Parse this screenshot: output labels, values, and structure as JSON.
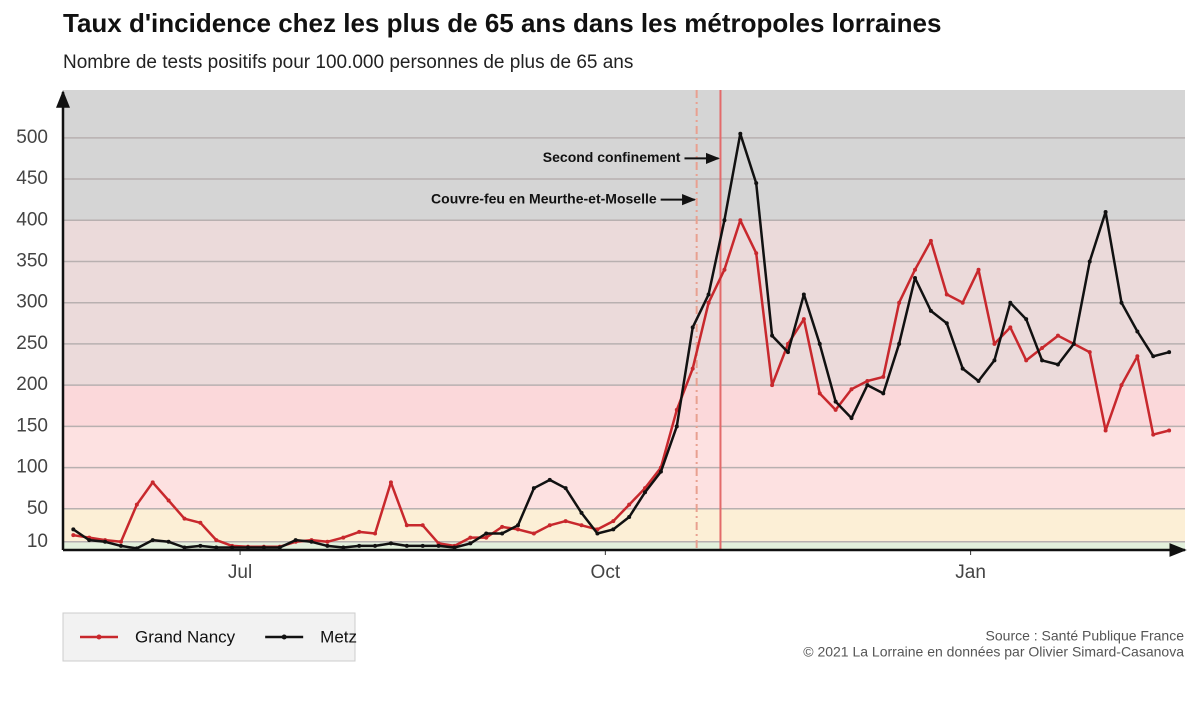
{
  "chart_data": {
    "type": "line",
    "title": "Taux d'incidence chez les plus de 65 ans dans les métropoles lorraines",
    "subtitle": "Nombre de tests positifs pour 100.000 personnes de plus de 65 ans",
    "x": [
      -42,
      -38,
      -34,
      -30,
      -26,
      -22,
      -18,
      -14,
      -10,
      -6,
      -2,
      2,
      6,
      10,
      14,
      18,
      22,
      26,
      30,
      34,
      38,
      42,
      46,
      50,
      54,
      58,
      62,
      66,
      70,
      74,
      78,
      82,
      86,
      90,
      94,
      98,
      102,
      106,
      110,
      114,
      118,
      122,
      126,
      130,
      134,
      138,
      142,
      146,
      150,
      154,
      158,
      162,
      166,
      170,
      174,
      178,
      182,
      186,
      190,
      194,
      198,
      202,
      206,
      210,
      214,
      218,
      222,
      226,
      230,
      234
    ],
    "series": [
      {
        "name": "Grand Nancy",
        "color": "#c8282d",
        "values": [
          18,
          15,
          12,
          10,
          55,
          82,
          60,
          38,
          33,
          12,
          5,
          4,
          4,
          4,
          10,
          12,
          10,
          15,
          22,
          20,
          82,
          30,
          30,
          8,
          5,
          15,
          15,
          28,
          25,
          20,
          30,
          35,
          30,
          25,
          35,
          55,
          75,
          100,
          170,
          220,
          300,
          340,
          400,
          360,
          200,
          250,
          280,
          190,
          170,
          195,
          205,
          210,
          300,
          340,
          375,
          310,
          300,
          340,
          250,
          270,
          230,
          245,
          260,
          250,
          240,
          145,
          200,
          235,
          140,
          145
        ]
      },
      {
        "name": "Metz",
        "color": "#111111",
        "values": [
          25,
          12,
          10,
          5,
          2,
          12,
          10,
          3,
          5,
          3,
          3,
          3,
          3,
          3,
          12,
          10,
          5,
          3,
          5,
          5,
          8,
          5,
          5,
          5,
          3,
          8,
          20,
          20,
          30,
          75,
          85,
          75,
          45,
          20,
          25,
          40,
          70,
          95,
          150,
          270,
          310,
          400,
          505,
          445,
          260,
          240,
          310,
          250,
          180,
          160,
          200,
          190,
          250,
          330,
          290,
          275,
          220,
          205,
          230,
          300,
          280,
          230,
          225,
          250,
          350,
          410,
          300,
          265,
          235,
          240
        ]
      }
    ],
    "xlim": [
      -44.6,
      238
    ],
    "xticks": [
      {
        "value": 0,
        "label": "Jul"
      },
      {
        "value": 92,
        "label": "Oct"
      },
      {
        "value": 184,
        "label": "Jan"
      }
    ],
    "ylim": [
      0,
      558
    ],
    "yticks": [
      10,
      50,
      100,
      150,
      200,
      250,
      300,
      350,
      400,
      450,
      500
    ],
    "grid": true,
    "bands": [
      {
        "from": 0,
        "to": 10,
        "color": "#e3f0dc"
      },
      {
        "from": 10,
        "to": 50,
        "color": "#fcefd6"
      },
      {
        "from": 50,
        "to": 150,
        "color": "#fde1e1"
      },
      {
        "from": 150,
        "to": 200,
        "color": "#fbd8da"
      },
      {
        "from": 200,
        "to": 400,
        "color": "#ebdada"
      },
      {
        "from": 400,
        "to": 558,
        "color": "#d5d5d5"
      }
    ],
    "annotations": [
      {
        "text": "Couvre-feu en Meurthe-et-Moselle",
        "x": 115,
        "y": 425,
        "style": "dashdot",
        "color": "#e8a090"
      },
      {
        "text": "Second confinement",
        "x": 121,
        "y": 475,
        "style": "solid",
        "color": "#e36a6a"
      }
    ],
    "legend": "bottom-left",
    "source": "Source : Santé Publique France",
    "credit": "© 2021 La Lorraine en données par Olivier Simard-Casanova"
  }
}
